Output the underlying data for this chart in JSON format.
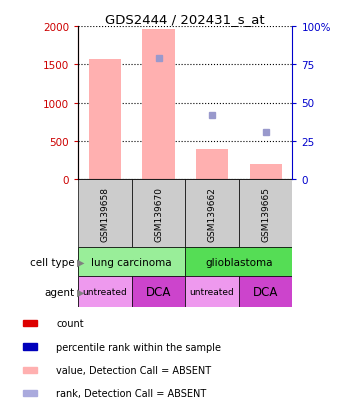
{
  "title": "GDS2444 / 202431_s_at",
  "samples": [
    "GSM139658",
    "GSM139670",
    "GSM139662",
    "GSM139665"
  ],
  "bar_values": [
    1570,
    1960,
    390,
    200
  ],
  "bar_color": "#FFB0B0",
  "rank_squares": [
    null,
    79,
    42,
    31
  ],
  "rank_square_color": "#9999CC",
  "ylim_left": [
    0,
    2000
  ],
  "ylim_right": [
    0,
    100
  ],
  "yticks_left": [
    0,
    500,
    1000,
    1500,
    2000
  ],
  "yticks_right": [
    0,
    25,
    50,
    75,
    100
  ],
  "cell_type_labels": [
    [
      "lung carcinoma",
      0,
      2
    ],
    [
      "glioblastoma",
      2,
      4
    ]
  ],
  "cell_type_group_colors": {
    "lung carcinoma": "#99EE99",
    "glioblastoma": "#55DD55"
  },
  "agents": [
    "untreated",
    "DCA",
    "untreated",
    "DCA"
  ],
  "agent_colors_map": {
    "untreated": "#EE99EE",
    "DCA": "#CC44CC"
  },
  "legend_items": [
    {
      "label": "count",
      "color": "#DD0000"
    },
    {
      "label": "percentile rank within the sample",
      "color": "#0000BB"
    },
    {
      "label": "value, Detection Call = ABSENT",
      "color": "#FFB0B0"
    },
    {
      "label": "rank, Detection Call = ABSENT",
      "color": "#AAAADD"
    }
  ],
  "left_axis_color": "#CC0000",
  "right_axis_color": "#0000CC",
  "sample_box_color": "#CCCCCC",
  "cell_type_row_label": "cell type",
  "agent_row_label": "agent"
}
